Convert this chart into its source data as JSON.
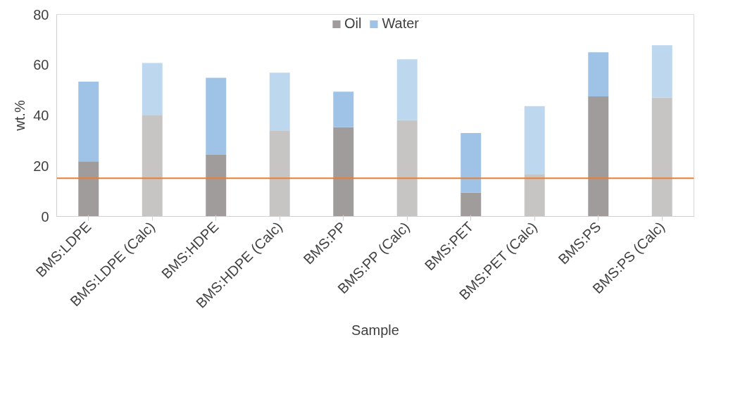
{
  "chart_data": {
    "type": "bar",
    "stacked": true,
    "xlabel": "Sample",
    "ylabel": "wt.%",
    "categories": [
      "BMS:LDPE",
      "BMS:LDPE (Calc)",
      "BMS:HDPE",
      "BMS:HDPE (Calc)",
      "BMS:PP",
      "BMS:PP (Calc)",
      "BMS:PET",
      "BMS:PET (Calc)",
      "BMS:PS",
      "BMS:PS (Calc)"
    ],
    "series": [
      {
        "name": "Oil",
        "color": "#a09c9b",
        "colors": [
          "#a09c9b",
          "#c7c5c4",
          "#a09c9b",
          "#c7c5c4",
          "#a09c9b",
          "#c7c5c4",
          "#a09c9b",
          "#c7c5c4",
          "#a09c9b",
          "#c7c5c4"
        ],
        "values": [
          21.8,
          40.0,
          24.4,
          33.9,
          35.3,
          38.1,
          9.5,
          16.8,
          47.5,
          47.1
        ]
      },
      {
        "name": "Water",
        "color": "#9fc3e6",
        "colors": [
          "#9fc3e6",
          "#bdd7ee",
          "#9fc3e6",
          "#bdd7ee",
          "#9fc3e6",
          "#bdd7ee",
          "#9fc3e6",
          "#bdd7ee",
          "#9fc3e6",
          "#bdd7ee"
        ],
        "values": [
          31.6,
          20.8,
          30.5,
          23.0,
          14.1,
          24.1,
          23.5,
          26.9,
          17.5,
          20.7
        ]
      }
    ],
    "ylim": [
      0,
      80
    ],
    "yticks": [
      0,
      20,
      40,
      60,
      80
    ],
    "grid": false,
    "legend": "top",
    "ref_lines": [
      {
        "axis": "y",
        "value": 15.1,
        "color": "#ed7d31"
      }
    ]
  }
}
